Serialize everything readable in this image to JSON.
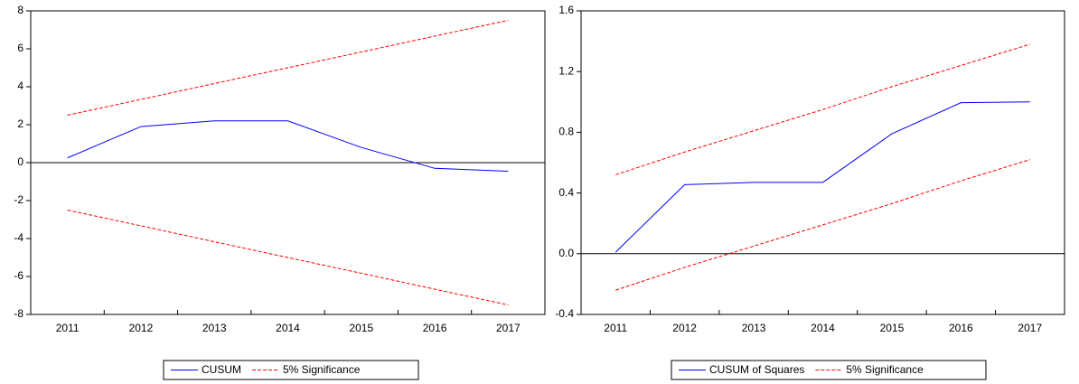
{
  "chart_data": [
    {
      "type": "line",
      "categories": [
        "2011",
        "2012",
        "2013",
        "2014",
        "2015",
        "2016",
        "2017"
      ],
      "ylim": [
        -8,
        8
      ],
      "yticks": [
        -8,
        -6,
        -4,
        -2,
        0,
        2,
        4,
        6,
        8
      ],
      "series": [
        {
          "name": "CUSUM",
          "color": "#0000ff",
          "values": [
            0.25,
            1.9,
            2.2,
            2.2,
            0.8,
            -0.3,
            -0.45
          ]
        },
        {
          "name": "5% Significance",
          "color": "#ff0000",
          "dashed": true,
          "values": [
            2.5,
            3.33,
            4.17,
            5.0,
            5.83,
            6.67,
            7.5
          ],
          "lower": [
            -2.5,
            -3.33,
            -4.17,
            -5.0,
            -5.83,
            -6.67,
            -7.5
          ]
        }
      ]
    },
    {
      "type": "line",
      "categories": [
        "2011",
        "2012",
        "2013",
        "2014",
        "2015",
        "2016",
        "2017"
      ],
      "ylim": [
        -0.4,
        1.6
      ],
      "yticks": [
        -0.4,
        {
          "value": 0,
          "label": "0.0"
        },
        0.4,
        0.8,
        1.2,
        1.6
      ],
      "series": [
        {
          "name": "CUSUM of Squares",
          "color": "#0000ff",
          "values": [
            0.01,
            0.455,
            0.47,
            0.47,
            0.79,
            0.995,
            1.0
          ]
        },
        {
          "name": "5% Significance",
          "color": "#ff0000",
          "dashed": true,
          "values": [
            0.52,
            0.67,
            0.81,
            0.95,
            1.1,
            1.24,
            1.38
          ],
          "lower": [
            -0.24,
            -0.09,
            0.05,
            0.19,
            0.33,
            0.48,
            0.62
          ]
        }
      ]
    }
  ]
}
